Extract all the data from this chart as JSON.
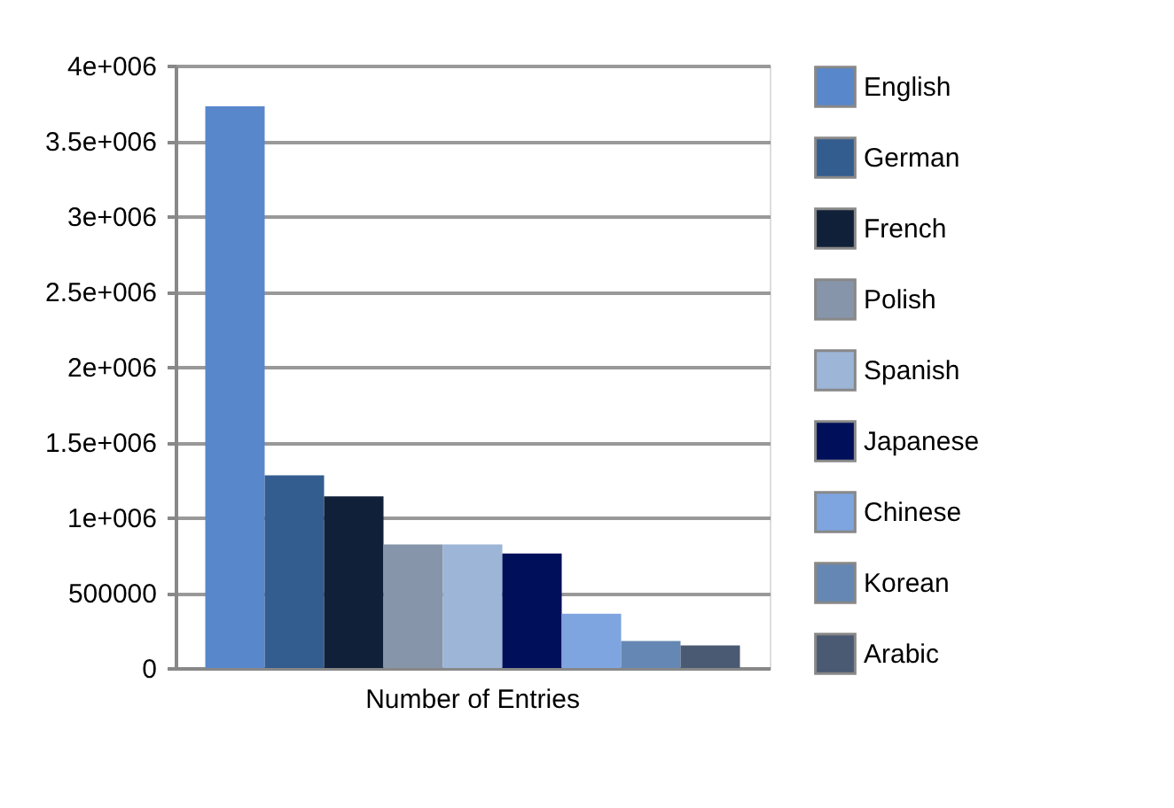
{
  "chart_data": {
    "type": "bar",
    "categories": [
      "Number of Entries"
    ],
    "series": [
      {
        "name": "English",
        "color": "#5887cc",
        "values": [
          3730000
        ]
      },
      {
        "name": "German",
        "color": "#335d8f",
        "values": [
          1280000
        ]
      },
      {
        "name": "French",
        "color": "#102038",
        "values": [
          1140000
        ]
      },
      {
        "name": "Polish",
        "color": "#8795aa",
        "values": [
          820000
        ]
      },
      {
        "name": "Spanish",
        "color": "#9db5d6",
        "values": [
          820000
        ]
      },
      {
        "name": "Japanese",
        "color": "#000f5a",
        "values": [
          760000
        ]
      },
      {
        "name": "Chinese",
        "color": "#7ea5df",
        "values": [
          360000
        ]
      },
      {
        "name": "Korean",
        "color": "#6587b3",
        "values": [
          180000
        ]
      },
      {
        "name": "Arabic",
        "color": "#4a5a72",
        "values": [
          150000
        ]
      }
    ],
    "ylim": [
      0,
      4000000
    ],
    "yticks": [
      0,
      500000,
      {
        "value": 1000000,
        "label": "1e+006"
      },
      {
        "value": 1500000,
        "label": "1.5e+006"
      },
      {
        "value": 2000000,
        "label": "2e+006"
      },
      {
        "value": 2500000,
        "label": "2.5e+006"
      },
      {
        "value": 3000000,
        "label": "3e+006"
      },
      {
        "value": 3500000,
        "label": "3.5e+006"
      },
      {
        "value": 4000000,
        "label": "4e+006"
      }
    ],
    "grid": "y",
    "legend": "right"
  }
}
